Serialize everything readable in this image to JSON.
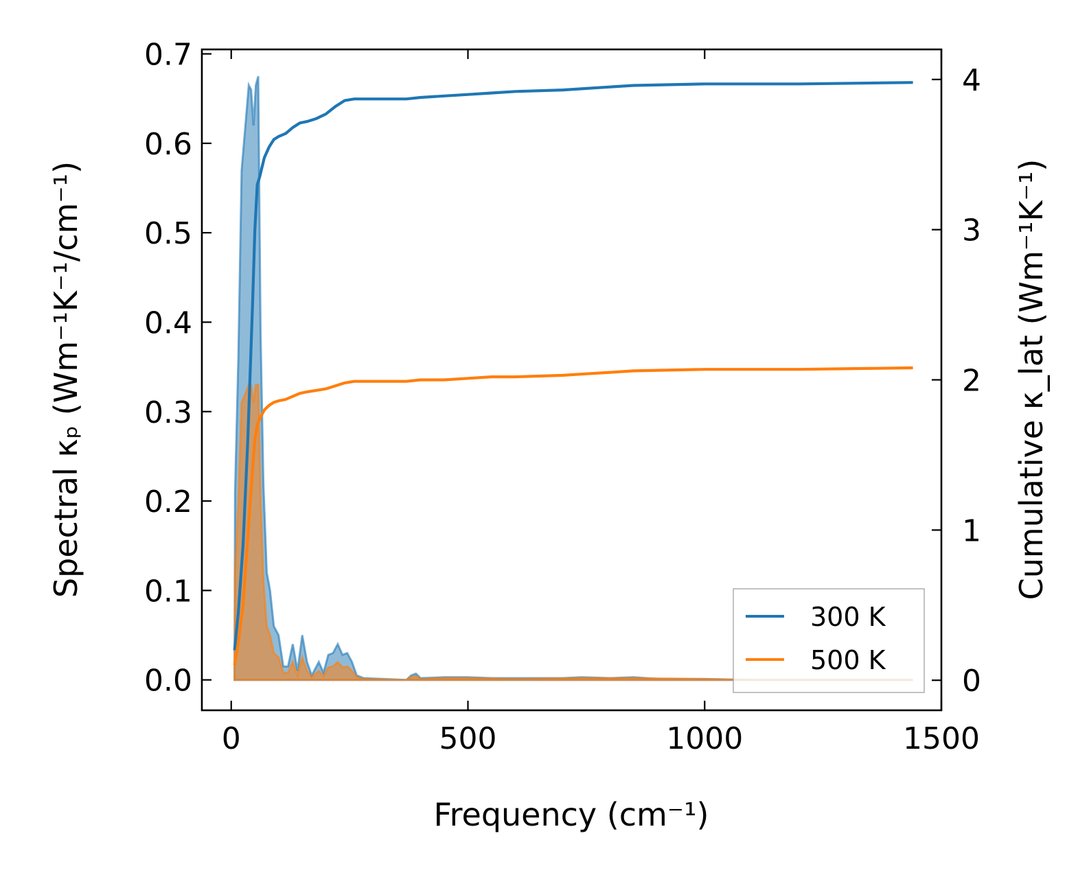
{
  "chart_data": {
    "type": "line",
    "xlabel": "Frequency (cm⁻¹)",
    "ylabel_left": "Spectral κₚ (Wm⁻¹K⁻¹/cm⁻¹)",
    "ylabel_right": "Cumulative κ_lat (Wm⁻¹K⁻¹)",
    "xlim": [
      -62,
      1500
    ],
    "ylim_left": [
      -0.034,
      0.705
    ],
    "ylim_right": [
      -0.2,
      4.2
    ],
    "x_ticks": [
      0,
      500,
      1000,
      1500
    ],
    "x_tick_labels": [
      "0",
      "500",
      "1000",
      "1500"
    ],
    "y_left_ticks": [
      0.0,
      0.1,
      0.2,
      0.3,
      0.4,
      0.5,
      0.6,
      0.7
    ],
    "y_left_tick_labels": [
      "0.0",
      "0.1",
      "0.2",
      "0.3",
      "0.4",
      "0.5",
      "0.6",
      "0.7"
    ],
    "y_right_ticks": [
      0,
      1,
      2,
      3,
      4
    ],
    "y_right_tick_labels": [
      "0",
      "1",
      "2",
      "3",
      "4"
    ],
    "legend_position": "lower-right",
    "grid": false,
    "series": [
      {
        "name": "300 K",
        "color": "#1f77b4",
        "spectral": [
          [
            7,
            0.0
          ],
          [
            8,
            0.21
          ],
          [
            15,
            0.36
          ],
          [
            22,
            0.57
          ],
          [
            30,
            0.62
          ],
          [
            37,
            0.665
          ],
          [
            42,
            0.66
          ],
          [
            47,
            0.62
          ],
          [
            52,
            0.665
          ],
          [
            57,
            0.675
          ],
          [
            62,
            0.39
          ],
          [
            68,
            0.22
          ],
          [
            75,
            0.12
          ],
          [
            82,
            0.1
          ],
          [
            90,
            0.06
          ],
          [
            100,
            0.05
          ],
          [
            110,
            0.015
          ],
          [
            120,
            0.015
          ],
          [
            130,
            0.04
          ],
          [
            140,
            0.01
          ],
          [
            150,
            0.05
          ],
          [
            160,
            0.02
          ],
          [
            170,
            0.005
          ],
          [
            185,
            0.02
          ],
          [
            195,
            0.008
          ],
          [
            205,
            0.028
          ],
          [
            215,
            0.03
          ],
          [
            225,
            0.04
          ],
          [
            235,
            0.028
          ],
          [
            245,
            0.03
          ],
          [
            255,
            0.02
          ],
          [
            265,
            0.005
          ],
          [
            280,
            0.002
          ],
          [
            370,
            0.0
          ],
          [
            380,
            0.005
          ],
          [
            390,
            0.007
          ],
          [
            400,
            0.002
          ],
          [
            450,
            0.003
          ],
          [
            500,
            0.003
          ],
          [
            550,
            0.002
          ],
          [
            600,
            0.002
          ],
          [
            700,
            0.002
          ],
          [
            740,
            0.003
          ],
          [
            800,
            0.002
          ],
          [
            850,
            0.003
          ],
          [
            900,
            0.001
          ],
          [
            1000,
            0.001
          ],
          [
            1100,
            0.0
          ],
          [
            1200,
            0.0
          ],
          [
            1300,
            0.0
          ],
          [
            1440,
            0.0
          ]
        ],
        "cumulative": [
          [
            7,
            0.2
          ],
          [
            15,
            0.45
          ],
          [
            25,
            0.9
          ],
          [
            35,
            1.6
          ],
          [
            45,
            2.5
          ],
          [
            50,
            3.0
          ],
          [
            55,
            3.3
          ],
          [
            60,
            3.35
          ],
          [
            70,
            3.48
          ],
          [
            80,
            3.55
          ],
          [
            90,
            3.6
          ],
          [
            100,
            3.62
          ],
          [
            115,
            3.64
          ],
          [
            130,
            3.68
          ],
          [
            145,
            3.71
          ],
          [
            160,
            3.72
          ],
          [
            180,
            3.74
          ],
          [
            200,
            3.77
          ],
          [
            220,
            3.82
          ],
          [
            240,
            3.86
          ],
          [
            260,
            3.87
          ],
          [
            300,
            3.87
          ],
          [
            370,
            3.87
          ],
          [
            400,
            3.88
          ],
          [
            450,
            3.89
          ],
          [
            500,
            3.9
          ],
          [
            550,
            3.91
          ],
          [
            600,
            3.92
          ],
          [
            700,
            3.93
          ],
          [
            750,
            3.94
          ],
          [
            800,
            3.95
          ],
          [
            850,
            3.96
          ],
          [
            1000,
            3.97
          ],
          [
            1200,
            3.97
          ],
          [
            1440,
            3.98
          ]
        ]
      },
      {
        "name": "500 K",
        "color": "#ff7f0e",
        "spectral": [
          [
            7,
            0.0
          ],
          [
            8,
            0.12
          ],
          [
            15,
            0.2
          ],
          [
            22,
            0.31
          ],
          [
            30,
            0.32
          ],
          [
            37,
            0.33
          ],
          [
            42,
            0.33
          ],
          [
            47,
            0.31
          ],
          [
            52,
            0.33
          ],
          [
            57,
            0.33
          ],
          [
            62,
            0.2
          ],
          [
            68,
            0.11
          ],
          [
            75,
            0.06
          ],
          [
            82,
            0.05
          ],
          [
            90,
            0.03
          ],
          [
            100,
            0.025
          ],
          [
            110,
            0.008
          ],
          [
            120,
            0.008
          ],
          [
            130,
            0.02
          ],
          [
            140,
            0.005
          ],
          [
            150,
            0.025
          ],
          [
            160,
            0.01
          ],
          [
            170,
            0.003
          ],
          [
            185,
            0.01
          ],
          [
            195,
            0.004
          ],
          [
            205,
            0.014
          ],
          [
            215,
            0.015
          ],
          [
            225,
            0.02
          ],
          [
            235,
            0.014
          ],
          [
            245,
            0.015
          ],
          [
            255,
            0.01
          ],
          [
            265,
            0.003
          ],
          [
            280,
            0.001
          ],
          [
            370,
            0.0
          ],
          [
            380,
            0.003
          ],
          [
            390,
            0.004
          ],
          [
            400,
            0.001
          ],
          [
            450,
            0.002
          ],
          [
            500,
            0.002
          ],
          [
            600,
            0.001
          ],
          [
            740,
            0.002
          ],
          [
            850,
            0.002
          ],
          [
            1000,
            0.001
          ],
          [
            1100,
            0.0
          ],
          [
            1440,
            0.0
          ]
        ],
        "cumulative": [
          [
            7,
            0.1
          ],
          [
            15,
            0.25
          ],
          [
            25,
            0.5
          ],
          [
            35,
            0.95
          ],
          [
            45,
            1.4
          ],
          [
            50,
            1.6
          ],
          [
            55,
            1.7
          ],
          [
            60,
            1.74
          ],
          [
            70,
            1.8
          ],
          [
            80,
            1.83
          ],
          [
            90,
            1.85
          ],
          [
            100,
            1.86
          ],
          [
            115,
            1.87
          ],
          [
            130,
            1.89
          ],
          [
            145,
            1.91
          ],
          [
            160,
            1.92
          ],
          [
            180,
            1.93
          ],
          [
            200,
            1.94
          ],
          [
            220,
            1.96
          ],
          [
            240,
            1.98
          ],
          [
            260,
            1.99
          ],
          [
            300,
            1.99
          ],
          [
            370,
            1.99
          ],
          [
            400,
            2.0
          ],
          [
            450,
            2.0
          ],
          [
            500,
            2.01
          ],
          [
            550,
            2.02
          ],
          [
            600,
            2.02
          ],
          [
            700,
            2.03
          ],
          [
            750,
            2.04
          ],
          [
            800,
            2.05
          ],
          [
            850,
            2.06
          ],
          [
            1000,
            2.07
          ],
          [
            1200,
            2.07
          ],
          [
            1440,
            2.08
          ]
        ]
      }
    ]
  }
}
